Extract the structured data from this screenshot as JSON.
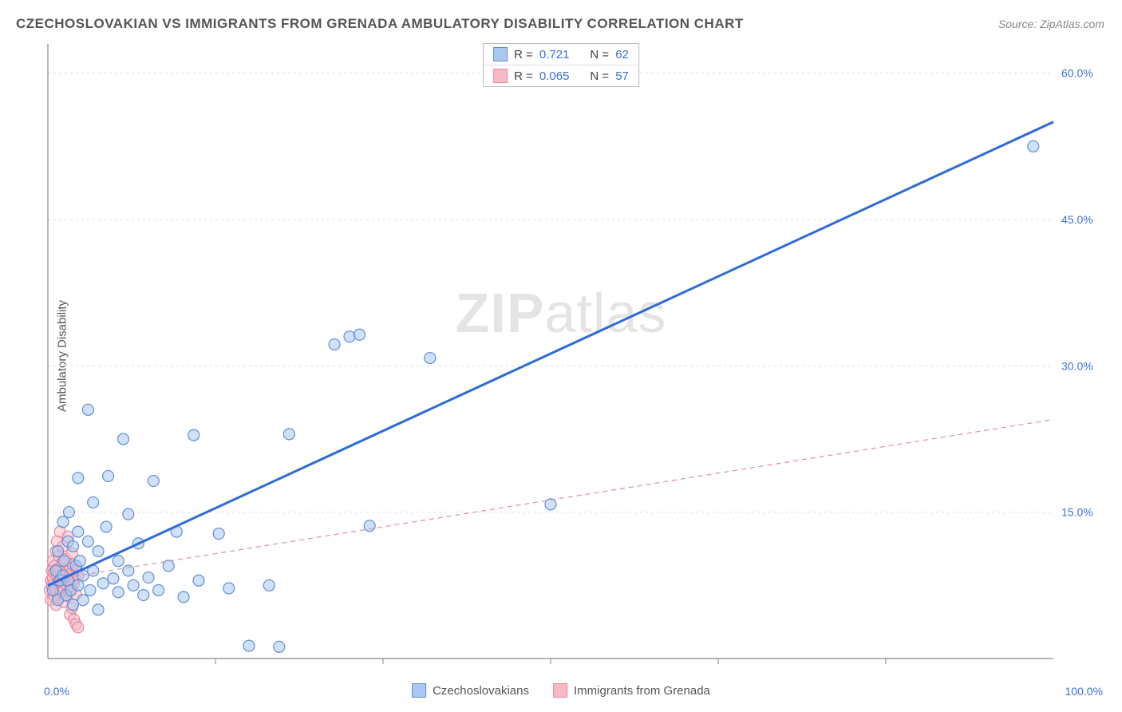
{
  "title": "CZECHOSLOVAKIAN VS IMMIGRANTS FROM GRENADA AMBULATORY DISABILITY CORRELATION CHART",
  "source": "Source: ZipAtlas.com",
  "y_axis_label": "Ambulatory Disability",
  "watermark_zip": "ZIP",
  "watermark_atlas": "atlas",
  "chart": {
    "type": "scatter",
    "xlim": [
      0,
      100
    ],
    "ylim": [
      0,
      63
    ],
    "x_ticks": [
      0,
      100
    ],
    "x_tick_labels": [
      "0.0%",
      "100.0%"
    ],
    "y_ticks": [
      15,
      30,
      45,
      60
    ],
    "y_tick_labels": [
      "15.0%",
      "30.0%",
      "45.0%",
      "60.0%"
    ],
    "x_minor_ticks": [
      16.67,
      33.33,
      50,
      66.67,
      83.33
    ],
    "grid_color": "#dddddd",
    "axis_color": "#888888",
    "background_color": "#ffffff",
    "marker_radius": 7,
    "marker_stroke_width": 1.2,
    "series": [
      {
        "name": "Czechoslovakians",
        "fill": "#a9c7f0",
        "stroke": "#5f8fd6",
        "fill_opacity": 0.55,
        "trend": {
          "x1": 0,
          "y1": 7.5,
          "x2": 100,
          "y2": 55,
          "stroke": "#2e6bd6",
          "width": 3,
          "dash": ""
        },
        "R": "0.721",
        "N": "62",
        "points": [
          [
            0.5,
            7
          ],
          [
            0.8,
            9
          ],
          [
            1,
            6
          ],
          [
            1,
            11
          ],
          [
            1.2,
            8
          ],
          [
            1.5,
            8.5
          ],
          [
            1.5,
            14
          ],
          [
            1.6,
            10
          ],
          [
            1.8,
            6.5
          ],
          [
            2,
            12
          ],
          [
            2,
            8
          ],
          [
            2.1,
            15
          ],
          [
            2.3,
            7
          ],
          [
            2.5,
            11.5
          ],
          [
            2.5,
            5.5
          ],
          [
            2.8,
            9.5
          ],
          [
            3,
            7.5
          ],
          [
            3,
            13
          ],
          [
            3,
            18.5
          ],
          [
            3.2,
            10
          ],
          [
            3.5,
            6
          ],
          [
            3.5,
            8.5
          ],
          [
            4,
            12
          ],
          [
            4,
            25.5
          ],
          [
            4.2,
            7
          ],
          [
            4.5,
            9
          ],
          [
            4.5,
            16
          ],
          [
            5,
            11
          ],
          [
            5,
            5
          ],
          [
            5.5,
            7.7
          ],
          [
            5.8,
            13.5
          ],
          [
            6,
            18.7
          ],
          [
            6.5,
            8.2
          ],
          [
            7,
            10
          ],
          [
            7,
            6.8
          ],
          [
            7.5,
            22.5
          ],
          [
            8,
            9
          ],
          [
            8,
            14.8
          ],
          [
            8.5,
            7.5
          ],
          [
            9,
            11.8
          ],
          [
            9.5,
            6.5
          ],
          [
            10,
            8.3
          ],
          [
            10.5,
            18.2
          ],
          [
            11,
            7
          ],
          [
            12,
            9.5
          ],
          [
            12.8,
            13
          ],
          [
            13.5,
            6.3
          ],
          [
            14.5,
            22.9
          ],
          [
            15,
            8
          ],
          [
            17,
            12.8
          ],
          [
            18,
            7.2
          ],
          [
            20,
            1.3
          ],
          [
            22,
            7.5
          ],
          [
            23,
            1.2
          ],
          [
            24,
            23
          ],
          [
            28.5,
            32.2
          ],
          [
            30,
            33
          ],
          [
            31,
            33.2
          ],
          [
            32,
            13.6
          ],
          [
            38,
            30.8
          ],
          [
            50,
            15.8
          ],
          [
            98,
            52.5
          ]
        ]
      },
      {
        "name": "Immigrants from Grenada",
        "fill": "#f7b9c6",
        "stroke": "#e68aa0",
        "fill_opacity": 0.55,
        "trend": {
          "x1": 0,
          "y1": 8,
          "x2": 100,
          "y2": 24.5,
          "stroke": "#e68aa0",
          "width": 1.2,
          "dash": "6 5"
        },
        "R": "0.065",
        "N": "57",
        "points": [
          [
            0.2,
            7
          ],
          [
            0.3,
            8
          ],
          [
            0.3,
            6
          ],
          [
            0.4,
            9
          ],
          [
            0.4,
            7.5
          ],
          [
            0.5,
            8.2
          ],
          [
            0.5,
            10
          ],
          [
            0.6,
            6.5
          ],
          [
            0.6,
            8.8
          ],
          [
            0.7,
            7.2
          ],
          [
            0.7,
            9.5
          ],
          [
            0.8,
            11
          ],
          [
            0.8,
            7
          ],
          [
            0.8,
            5.5
          ],
          [
            0.9,
            8.5
          ],
          [
            0.9,
            12
          ],
          [
            1,
            7.8
          ],
          [
            1,
            9.2
          ],
          [
            1,
            6.2
          ],
          [
            1.1,
            8
          ],
          [
            1.1,
            10.5
          ],
          [
            1.2,
            7.5
          ],
          [
            1.2,
            13
          ],
          [
            1.3,
            8.3
          ],
          [
            1.3,
            6.8
          ],
          [
            1.4,
            9.8
          ],
          [
            1.4,
            7.3
          ],
          [
            1.5,
            8.6
          ],
          [
            1.5,
            11.5
          ],
          [
            1.6,
            7.1
          ],
          [
            1.6,
            5.8
          ],
          [
            1.7,
            9
          ],
          [
            1.7,
            8.1
          ],
          [
            1.8,
            7.6
          ],
          [
            1.8,
            10.2
          ],
          [
            1.9,
            6.4
          ],
          [
            1.9,
            8.9
          ],
          [
            2,
            7.9
          ],
          [
            2,
            12.5
          ],
          [
            2.1,
            8.4
          ],
          [
            2.1,
            6.9
          ],
          [
            2.2,
            9.3
          ],
          [
            2.2,
            4.5
          ],
          [
            2.3,
            8.7
          ],
          [
            2.3,
            7.4
          ],
          [
            2.4,
            10.8
          ],
          [
            2.4,
            5.2
          ],
          [
            2.5,
            8
          ],
          [
            2.5,
            9.6
          ],
          [
            2.6,
            7.7
          ],
          [
            2.6,
            4
          ],
          [
            2.7,
            8.2
          ],
          [
            2.8,
            6.6
          ],
          [
            2.8,
            3.5
          ],
          [
            2.9,
            9.1
          ],
          [
            3,
            8.5
          ],
          [
            3,
            3.2
          ]
        ]
      }
    ]
  },
  "stats_box": {
    "rows": [
      {
        "swatch_fill": "#a9c7f0",
        "swatch_stroke": "#5f8fd6",
        "r_label": "R =",
        "r_val": "0.721",
        "n_label": "N =",
        "n_val": "62"
      },
      {
        "swatch_fill": "#f7b9c6",
        "swatch_stroke": "#e68aa0",
        "r_label": "R =",
        "r_val": "0.065",
        "n_label": "N =",
        "n_val": "57"
      }
    ]
  },
  "bottom_legend": {
    "items": [
      {
        "swatch_fill": "#a9c7f0",
        "swatch_stroke": "#5f8fd6",
        "label": "Czechoslovakians"
      },
      {
        "swatch_fill": "#f7b9c6",
        "swatch_stroke": "#e68aa0",
        "label": "Immigrants from Grenada"
      }
    ]
  }
}
